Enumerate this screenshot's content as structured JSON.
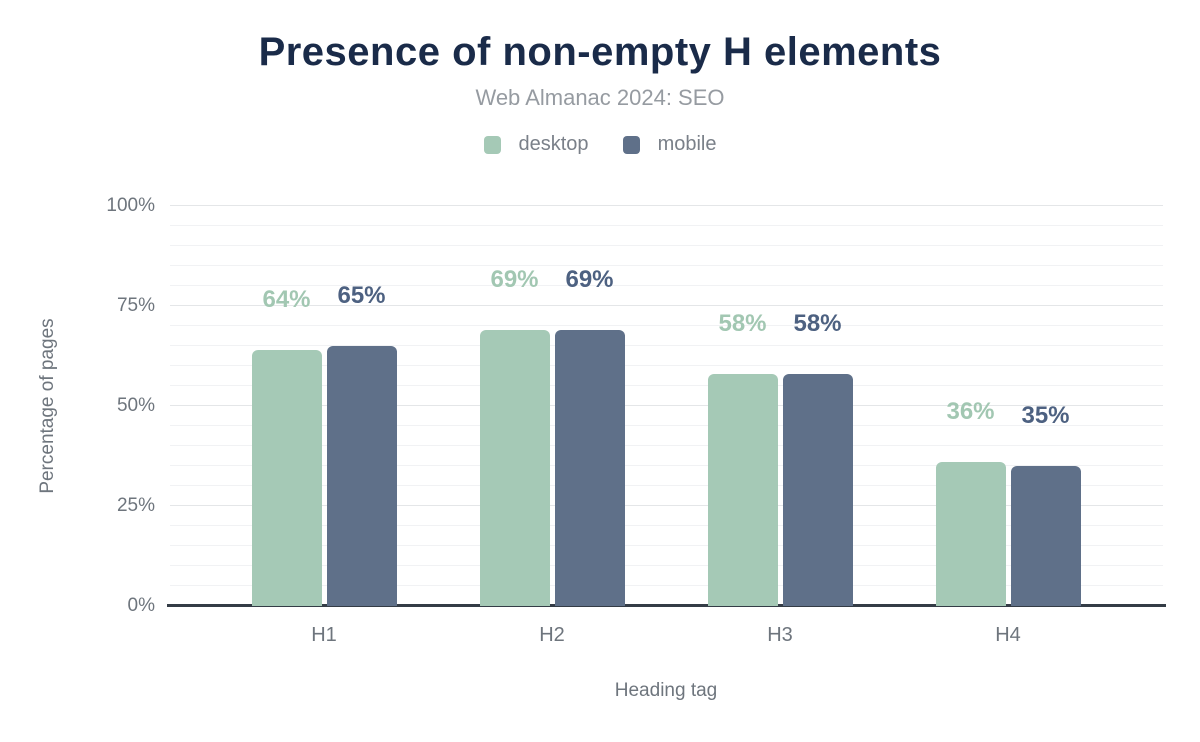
{
  "chart": {
    "title": "Presence of non-empty H elements",
    "subtitle": "Web Almanac 2024: SEO",
    "x_axis_title": "Heading tag",
    "y_axis_title": "Percentage of pages"
  },
  "chart_data": {
    "type": "bar",
    "title": "Presence of non-empty H elements",
    "subtitle": "Web Almanac 2024: SEO",
    "xlabel": "Heading tag",
    "ylabel": "Percentage of pages",
    "categories": [
      "H1",
      "H2",
      "H3",
      "H4"
    ],
    "series": [
      {
        "name": "desktop",
        "color": "#a5c9b6",
        "label_color": "#a2c7b2",
        "values": [
          64,
          69,
          58,
          36
        ]
      },
      {
        "name": "mobile",
        "color": "#5f7089",
        "label_color": "#4d6181",
        "values": [
          65,
          69,
          58,
          35
        ]
      }
    ],
    "value_suffix": "%",
    "ylim": [
      0,
      100
    ],
    "yticks": [
      0,
      25,
      50,
      75,
      100
    ],
    "ytick_labels": [
      "0%",
      "25%",
      "50%",
      "75%",
      "100%"
    ],
    "minor_grid_step": 5,
    "grid": true,
    "legend_position": "top",
    "colors": {
      "title": "#1a2b49",
      "subtitle": "#969ba1",
      "axis_labels": "#6e757d",
      "axis_line": "#343c46",
      "major_grid": "#e4e6e8",
      "minor_grid": "#f1f2f4"
    }
  }
}
